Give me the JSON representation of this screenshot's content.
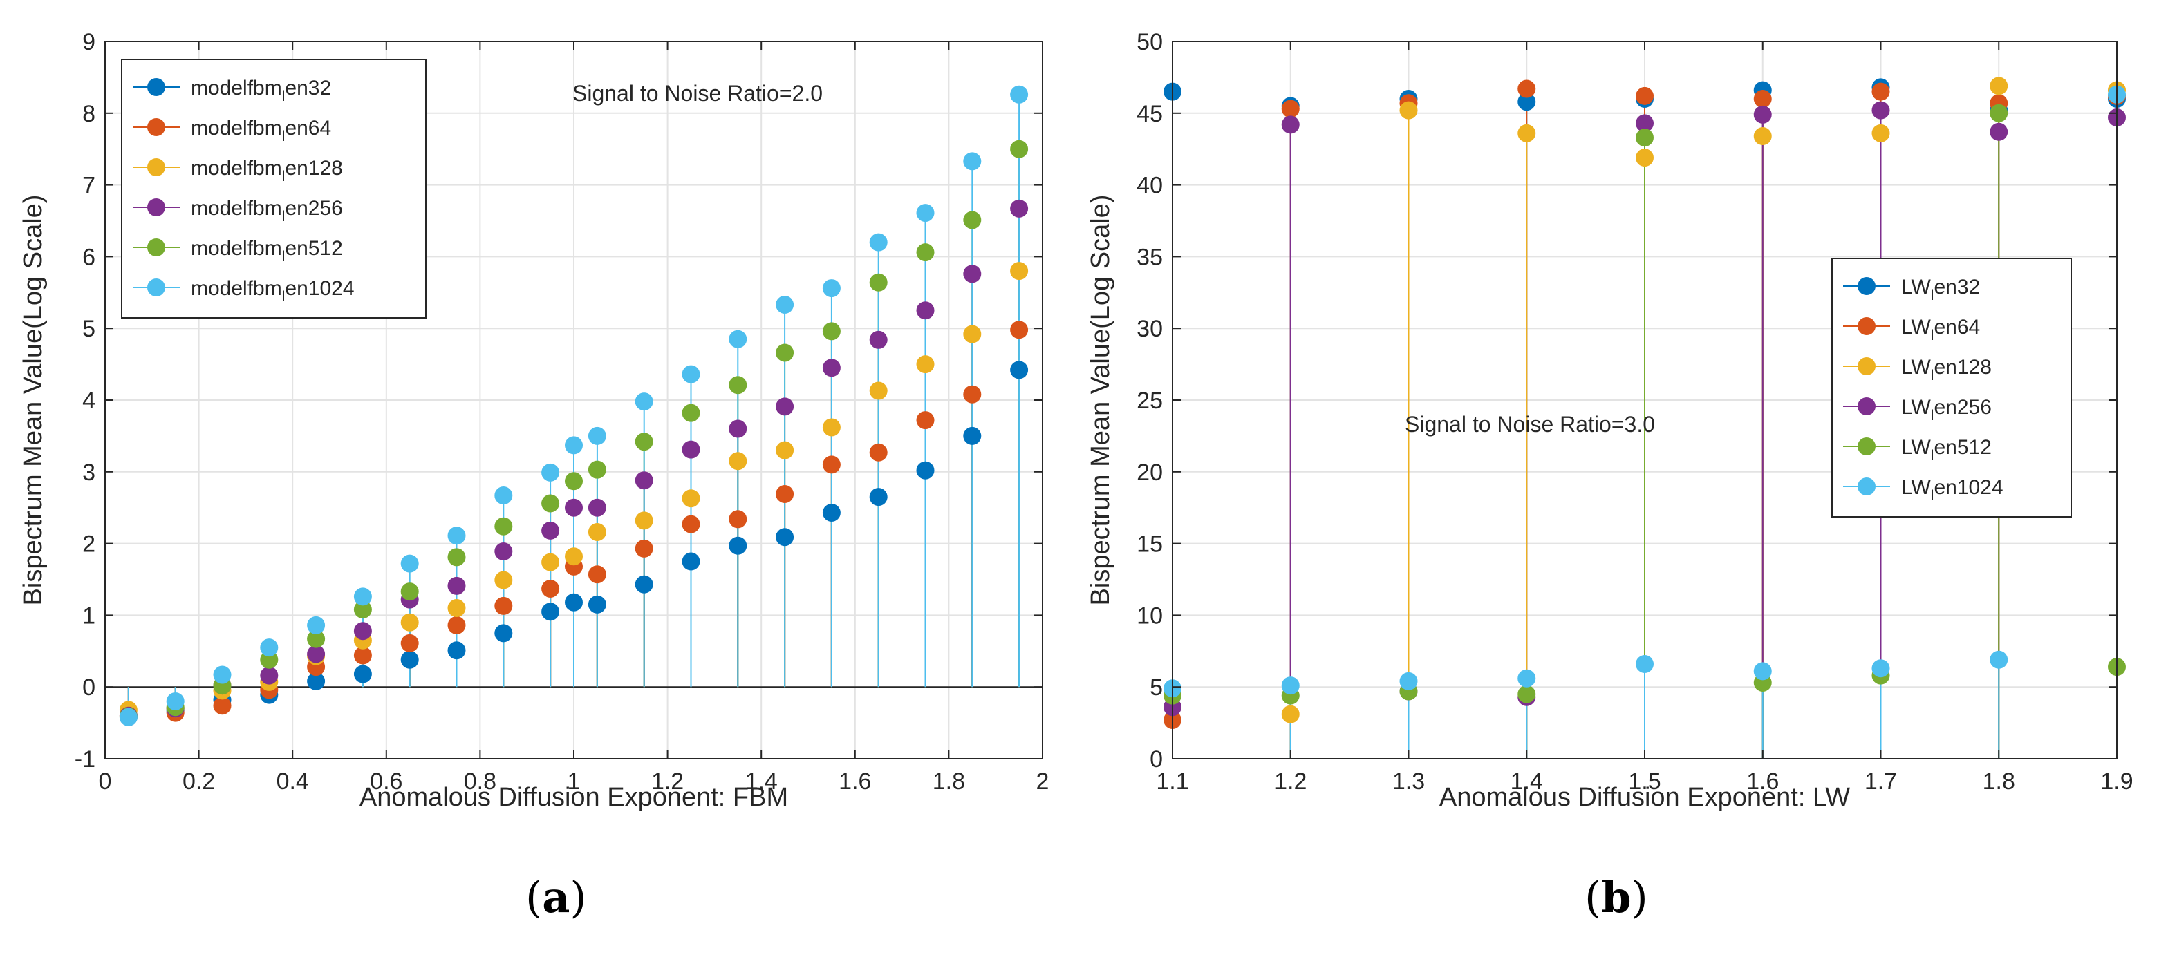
{
  "colors": [
    "#0072BD",
    "#D95319",
    "#EDB120",
    "#7E2F8E",
    "#77AC30",
    "#4DBEEE"
  ],
  "captions": {
    "a": "a",
    "b": "b"
  },
  "chart_data": [
    {
      "type": "stem-scatter",
      "annotation": "Signal to Noise Ratio=2.0",
      "xlabel": "Anomalous Diffusion Exponent: FBM",
      "ylabel": "Bispectrum Mean Value(Log Scale)",
      "xlim": [
        0,
        2
      ],
      "ylim": [
        -1,
        9
      ],
      "xticks": [
        "0",
        "0.2",
        "0.4",
        "0.6",
        "0.8",
        "1",
        "1.2",
        "1.4",
        "1.6",
        "1.8",
        "2"
      ],
      "yticks": [
        "-1",
        "0",
        "1",
        "2",
        "3",
        "4",
        "5",
        "6",
        "7",
        "8",
        "9"
      ],
      "grid": true,
      "legend_position": "top-left",
      "x": [
        0.05,
        0.15,
        0.25,
        0.35,
        0.45,
        0.55,
        0.65,
        0.75,
        0.85,
        0.95,
        1.0,
        1.05,
        1.15,
        1.25,
        1.35,
        1.45,
        1.55,
        1.65,
        1.75,
        1.85,
        1.95
      ],
      "series": [
        {
          "name": "modelfbm_len32",
          "legend_main": "modelfbm",
          "legend_sub": "l",
          "legend_tail": "en32",
          "values": [
            -0.42,
            -0.33,
            -0.18,
            -0.11,
            0.08,
            0.18,
            0.38,
            0.51,
            0.75,
            1.05,
            1.18,
            1.15,
            1.43,
            1.75,
            1.97,
            2.09,
            2.43,
            2.65,
            3.02,
            3.5,
            4.42
          ]
        },
        {
          "name": "modelfbm_len64",
          "legend_main": "modelfbm",
          "legend_sub": "l",
          "legend_tail": "en64",
          "values": [
            -0.4,
            -0.36,
            -0.26,
            -0.04,
            0.28,
            0.44,
            0.61,
            0.86,
            1.13,
            1.37,
            1.68,
            1.57,
            1.93,
            2.27,
            2.34,
            2.69,
            3.1,
            3.27,
            3.72,
            4.08,
            4.98
          ]
        },
        {
          "name": "modelfbm_len128",
          "legend_main": "modelfbm",
          "legend_sub": "l",
          "legend_tail": "en128",
          "values": [
            -0.32,
            -0.3,
            -0.05,
            0.07,
            0.43,
            0.65,
            0.9,
            1.1,
            1.49,
            1.74,
            1.82,
            2.16,
            2.32,
            2.63,
            3.15,
            3.3,
            3.62,
            4.13,
            4.5,
            4.92,
            5.8
          ]
        },
        {
          "name": "modelfbm_len256",
          "legend_main": "modelfbm",
          "legend_sub": "l",
          "legend_tail": "en256",
          "values": [
            -0.4,
            -0.3,
            0.02,
            0.16,
            0.46,
            0.78,
            1.22,
            1.41,
            1.89,
            2.18,
            2.5,
            2.5,
            2.88,
            3.31,
            3.6,
            3.91,
            4.45,
            4.84,
            5.25,
            5.76,
            6.67
          ]
        },
        {
          "name": "modelfbm_len512",
          "legend_main": "modelfbm",
          "legend_sub": "l",
          "legend_tail": "en512",
          "values": [
            -0.41,
            -0.28,
            0.02,
            0.38,
            0.67,
            1.08,
            1.33,
            1.81,
            2.24,
            2.56,
            2.87,
            3.03,
            3.42,
            3.82,
            4.21,
            4.66,
            4.96,
            5.64,
            6.06,
            6.51,
            7.5
          ]
        },
        {
          "name": "modelfbm_len1024",
          "legend_main": "modelfbm",
          "legend_sub": "l",
          "legend_tail": "en1024",
          "values": [
            -0.42,
            -0.2,
            0.17,
            0.55,
            0.86,
            1.26,
            1.72,
            2.11,
            2.67,
            2.99,
            3.37,
            3.5,
            3.98,
            4.36,
            4.85,
            5.33,
            5.56,
            6.2,
            6.61,
            7.33,
            8.26
          ]
        }
      ]
    },
    {
      "type": "stem-scatter",
      "annotation": "Signal to Noise Ratio=3.0",
      "xlabel": "Anomalous Diffusion Exponent: LW",
      "ylabel": "Bispectrum Mean Value(Log Scale)",
      "xlim": [
        1.1,
        1.9
      ],
      "ylim": [
        0,
        50
      ],
      "xticks": [
        "1.1",
        "1.2",
        "1.3",
        "1.4",
        "1.5",
        "1.6",
        "1.7",
        "1.8",
        "1.9"
      ],
      "yticks": [
        "0",
        "5",
        "10",
        "15",
        "20",
        "25",
        "30",
        "35",
        "40",
        "45",
        "50"
      ],
      "grid": true,
      "legend_position": "right",
      "x": [
        1.1,
        1.2,
        1.3,
        1.4,
        1.5,
        1.6,
        1.7,
        1.8,
        1.9
      ],
      "series": [
        {
          "name": "LW_len32",
          "legend_main": "LW",
          "legend_sub": "l",
          "legend_tail": "en32",
          "values": [
            46.5,
            45.5,
            46.0,
            45.8,
            46.0,
            46.6,
            46.8,
            45.2,
            46.0
          ]
        },
        {
          "name": "LW_len64",
          "legend_main": "LW",
          "legend_sub": "l",
          "legend_tail": "en64",
          "values": [
            2.7,
            45.3,
            45.7,
            46.7,
            46.2,
            46.0,
            46.5,
            45.7,
            46.2
          ]
        },
        {
          "name": "LW_len128",
          "legend_main": "LW",
          "legend_sub": "l",
          "legend_tail": "en128",
          "values": [
            4.6,
            3.1,
            45.2,
            43.6,
            41.9,
            43.4,
            43.6,
            46.9,
            46.6
          ]
        },
        {
          "name": "LW_len256",
          "legend_main": "LW",
          "legend_sub": "l",
          "legend_tail": "en256",
          "values": [
            3.6,
            44.2,
            4.7,
            4.3,
            44.3,
            44.9,
            45.2,
            43.7,
            44.7
          ]
        },
        {
          "name": "LW_len512",
          "legend_main": "LW",
          "legend_sub": "l",
          "legend_tail": "en512",
          "values": [
            4.4,
            4.4,
            4.7,
            4.5,
            43.3,
            5.3,
            5.8,
            45.0,
            6.4
          ]
        },
        {
          "name": "LW_len1024",
          "legend_main": "LW",
          "legend_sub": "l",
          "legend_tail": "en1024",
          "values": [
            4.9,
            5.1,
            5.4,
            5.6,
            6.6,
            6.1,
            6.3,
            6.9,
            46.3
          ]
        }
      ]
    }
  ]
}
